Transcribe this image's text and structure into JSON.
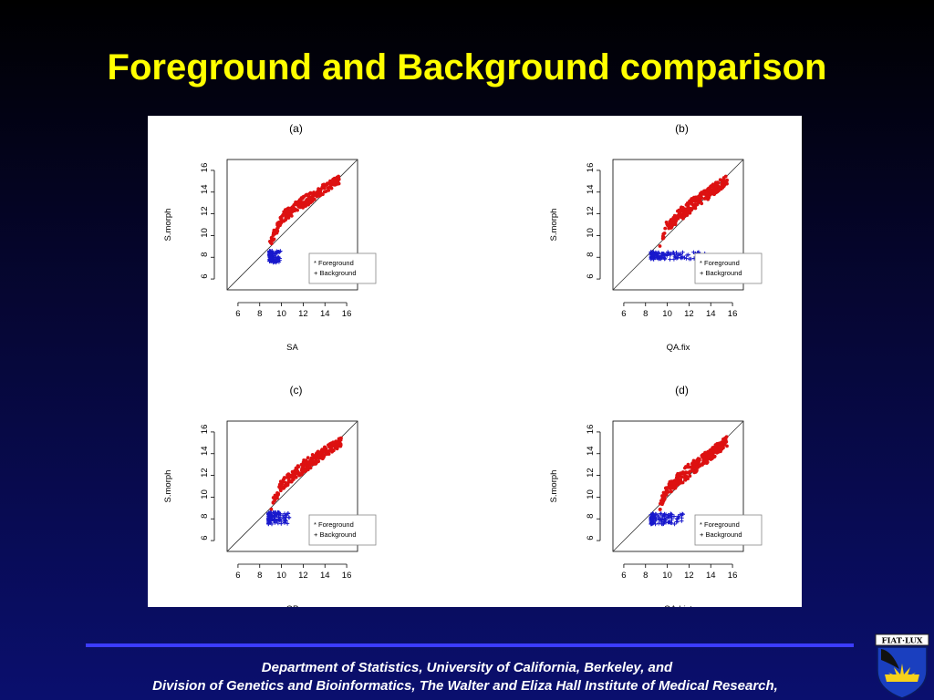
{
  "slide": {
    "title": "Foreground and Background comparison",
    "footer_line1": "Department of Statistics, University of California, Berkeley,  and",
    "footer_line2": "Division of Genetics and Bioinformatics, The Walter and Eliza Hall Institute of Medical Research,",
    "logo_text": "FIAT LUX"
  },
  "colors": {
    "title": "#ffff00",
    "foreground": "#dd1111",
    "background": "#1818cc",
    "divider": "#3c3cff"
  },
  "chart_data": [
    {
      "type": "scatter",
      "title": "(a)",
      "xlabel": "SA",
      "ylabel": "S.morph",
      "xlim": [
        5,
        17
      ],
      "ylim": [
        5,
        17
      ],
      "xticks": [
        6,
        8,
        10,
        12,
        14,
        16
      ],
      "yticks": [
        6,
        8,
        10,
        12,
        14,
        16
      ],
      "reference_line": "y = x",
      "legend": {
        "placement": "bottom-right",
        "entries": [
          "* Foreground",
          "+ Background"
        ]
      },
      "series": [
        {
          "name": "Foreground",
          "marker": "*",
          "trend": [
            [
              8.9,
              9.0
            ],
            [
              10,
              11.5
            ],
            [
              12,
              12.9
            ],
            [
              14,
              14.2
            ],
            [
              15.3,
              15.0
            ]
          ],
          "spread": 0.7
        },
        {
          "name": "Background",
          "marker": "+",
          "x_range": [
            8.9,
            9.9
          ],
          "y_range": [
            7.5,
            8.6
          ]
        }
      ]
    },
    {
      "type": "scatter",
      "title": "(b)",
      "xlabel": "QA.fix",
      "ylabel": "S.morph",
      "xlim": [
        5,
        17
      ],
      "ylim": [
        5,
        17
      ],
      "xticks": [
        6,
        8,
        10,
        12,
        14,
        16
      ],
      "yticks": [
        6,
        8,
        10,
        12,
        14,
        16
      ],
      "reference_line": "y = x",
      "legend": {
        "placement": "bottom-right",
        "entries": [
          "* Foreground",
          "+ Background"
        ]
      },
      "series": [
        {
          "name": "Foreground",
          "marker": "*",
          "trend": [
            [
              9.3,
              9.0
            ],
            [
              10,
              10.8
            ],
            [
              12,
              12.4
            ],
            [
              14,
              13.9
            ],
            [
              15.5,
              15.0
            ]
          ],
          "spread": 0.8
        },
        {
          "name": "Background",
          "marker": "+",
          "x_range": [
            8.5,
            13.8
          ],
          "y_range": [
            7.8,
            8.5
          ]
        }
      ]
    },
    {
      "type": "scatter",
      "title": "(c)",
      "xlabel": "GP",
      "ylabel": "S.morph",
      "xlim": [
        5,
        17
      ],
      "ylim": [
        5,
        17
      ],
      "xticks": [
        6,
        8,
        10,
        12,
        14,
        16
      ],
      "yticks": [
        6,
        8,
        10,
        12,
        14,
        16
      ],
      "reference_line": "y = x",
      "legend": {
        "placement": "bottom-right",
        "entries": [
          "* Foreground",
          "+ Background"
        ]
      },
      "series": [
        {
          "name": "Foreground",
          "marker": "*",
          "trend": [
            [
              9.0,
              9.0
            ],
            [
              10,
              11.0
            ],
            [
              12,
              12.6
            ],
            [
              14,
              14.0
            ],
            [
              15.5,
              15.0
            ]
          ],
          "spread": 0.75
        },
        {
          "name": "Background",
          "marker": "+",
          "x_range": [
            8.8,
            10.8
          ],
          "y_range": [
            7.5,
            8.6
          ]
        }
      ]
    },
    {
      "type": "scatter",
      "title": "(d)",
      "xlabel": "QA.hist",
      "ylabel": "S.morph",
      "xlim": [
        5,
        17
      ],
      "ylim": [
        5,
        17
      ],
      "xticks": [
        6,
        8,
        10,
        12,
        14,
        16
      ],
      "yticks": [
        6,
        8,
        10,
        12,
        14,
        16
      ],
      "reference_line": "y = x",
      "legend": {
        "placement": "bottom-right",
        "entries": [
          "* Foreground",
          "+ Background"
        ]
      },
      "series": [
        {
          "name": "Foreground",
          "marker": "*",
          "trend": [
            [
              9.3,
              9.0
            ],
            [
              10,
              10.6
            ],
            [
              12,
              12.2
            ],
            [
              14,
              13.8
            ],
            [
              15.5,
              15.0
            ]
          ],
          "spread": 0.85
        },
        {
          "name": "Background",
          "marker": "+",
          "x_range": [
            8.5,
            11.6
          ],
          "y_range": [
            7.5,
            8.5
          ]
        }
      ]
    }
  ]
}
